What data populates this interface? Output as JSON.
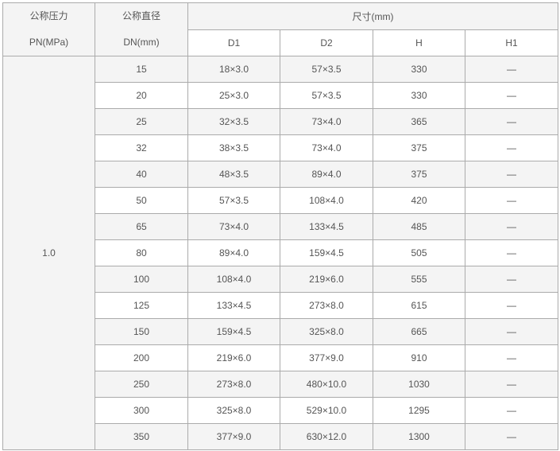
{
  "header": {
    "pressure_label": "公称压力",
    "pressure_unit": "PN(MPa)",
    "diameter_label": "公称直径",
    "diameter_unit": "DN(mm)",
    "size_label": "尺寸(mm)",
    "columns": [
      "D1",
      "D2",
      "H",
      "H1"
    ]
  },
  "pressure_value": "1.0",
  "rows": [
    {
      "dn": "15",
      "d1": "18×3.0",
      "d2": "57×3.5",
      "h": "330",
      "h1": "—"
    },
    {
      "dn": "20",
      "d1": "25×3.0",
      "d2": "57×3.5",
      "h": "330",
      "h1": "—"
    },
    {
      "dn": "25",
      "d1": "32×3.5",
      "d2": "73×4.0",
      "h": "365",
      "h1": "—"
    },
    {
      "dn": "32",
      "d1": "38×3.5",
      "d2": "73×4.0",
      "h": "375",
      "h1": "—"
    },
    {
      "dn": "40",
      "d1": "48×3.5",
      "d2": "89×4.0",
      "h": "375",
      "h1": "—"
    },
    {
      "dn": "50",
      "d1": "57×3.5",
      "d2": "108×4.0",
      "h": "420",
      "h1": "—"
    },
    {
      "dn": "65",
      "d1": "73×4.0",
      "d2": "133×4.5",
      "h": "485",
      "h1": "—"
    },
    {
      "dn": "80",
      "d1": "89×4.0",
      "d2": "159×4.5",
      "h": "505",
      "h1": "—"
    },
    {
      "dn": "100",
      "d1": "108×4.0",
      "d2": "219×6.0",
      "h": "555",
      "h1": "—"
    },
    {
      "dn": "125",
      "d1": "133×4.5",
      "d2": "273×8.0",
      "h": "615",
      "h1": "—"
    },
    {
      "dn": "150",
      "d1": "159×4.5",
      "d2": "325×8.0",
      "h": "665",
      "h1": "—"
    },
    {
      "dn": "200",
      "d1": "219×6.0",
      "d2": "377×9.0",
      "h": "910",
      "h1": "—"
    },
    {
      "dn": "250",
      "d1": "273×8.0",
      "d2": "480×10.0",
      "h": "1030",
      "h1": "—"
    },
    {
      "dn": "300",
      "d1": "325×8.0",
      "d2": "529×10.0",
      "h": "1295",
      "h1": "—"
    },
    {
      "dn": "350",
      "d1": "377×9.0",
      "d2": "630×12.0",
      "h": "1300",
      "h1": "—"
    }
  ]
}
